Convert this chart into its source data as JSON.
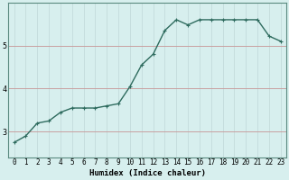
{
  "xlabel": "Humidex (Indice chaleur)",
  "x_values": [
    0,
    1,
    2,
    3,
    4,
    5,
    6,
    7,
    8,
    9,
    10,
    11,
    12,
    13,
    14,
    15,
    16,
    17,
    18,
    19,
    20,
    21,
    22,
    23
  ],
  "y_values": [
    2.75,
    2.9,
    3.2,
    3.25,
    3.45,
    3.55,
    3.55,
    3.55,
    3.6,
    3.65,
    4.05,
    4.55,
    4.8,
    5.35,
    5.6,
    5.48,
    5.6,
    5.6,
    5.6,
    5.6,
    5.6,
    5.6,
    5.22,
    5.1
  ],
  "line_color": "#2e6b5e",
  "marker": "+",
  "marker_size": 3,
  "bg_color": "#d7efee",
  "grid_color_h": "#c9a0a0",
  "grid_color_v": "#c0d8d8",
  "ylim": [
    2.4,
    6.0
  ],
  "xlim": [
    -0.5,
    23.5
  ],
  "yticks": [
    3,
    4,
    5
  ],
  "xticks": [
    0,
    1,
    2,
    3,
    4,
    5,
    6,
    7,
    8,
    9,
    10,
    11,
    12,
    13,
    14,
    15,
    16,
    17,
    18,
    19,
    20,
    21,
    22,
    23
  ],
  "tick_fontsize": 5.5,
  "xlabel_fontsize": 6.5,
  "line_width": 1.0,
  "marker_edge_width": 0.8
}
